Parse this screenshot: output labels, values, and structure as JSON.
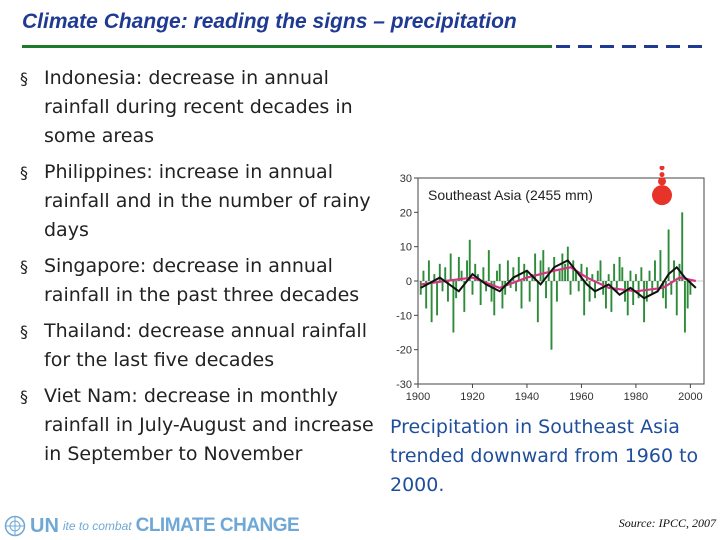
{
  "slide": {
    "title": "Climate Change: reading the signs – precipitation",
    "bullets": [
      "Indonesia: decrease in annual rainfall during recent decades in some areas",
      "Philippines: increase in annual rainfall and in the number of rainy days",
      "Singapore: decrease in annual rainfall in the past three decades",
      "Thailand: decrease annual rainfall for the last five decades",
      "Viet Nam: decrease in monthly rainfall in July-August and increase in September to November"
    ],
    "bullet_glyph": "§",
    "caption": "Precipitation in Southeast Asia trended downward from 1960 to 2000.",
    "logo": {
      "part1": "UN",
      "part2": "ite to combat",
      "part3": "CLIMATE CHANGE"
    },
    "source": "Source: IPCC, 2007"
  },
  "colors": {
    "title": "#1f3a93",
    "rule_solid": "#1b7a2b",
    "caption": "#1f4e9c",
    "bar": "#2e8b3a",
    "smooth": "#111111",
    "trend": "#d63384",
    "dot": "#e8332a"
  },
  "chart_data": {
    "type": "bar",
    "title": "Southeast Asia (2455 mm)",
    "x_ticks": [
      1900,
      1920,
      1940,
      1960,
      1980,
      2000
    ],
    "y_ticks": [
      30,
      20,
      10,
      0,
      -10,
      -20,
      -30
    ],
    "xlim": [
      1900,
      2005
    ],
    "ylim": [
      -30,
      30
    ],
    "bars": {
      "start_year": 1901,
      "values": [
        -4,
        3,
        -8,
        6,
        -12,
        2,
        -10,
        5,
        -3,
        4,
        -6,
        8,
        -15,
        -5,
        7,
        3,
        -9,
        6,
        12,
        -4,
        5,
        2,
        -7,
        4,
        -3,
        9,
        -6,
        -10,
        3,
        5,
        -8,
        -4,
        6,
        -2,
        4,
        -3,
        7,
        -8,
        5,
        3,
        -6,
        2,
        8,
        -12,
        6,
        9,
        -5,
        4,
        -20,
        7,
        -6,
        3,
        8,
        5,
        10,
        -4,
        6,
        3,
        -3,
        5,
        -10,
        4,
        -6,
        2,
        -5,
        3,
        6,
        -4,
        -8,
        2,
        -9,
        5,
        -3,
        7,
        4,
        -6,
        -10,
        3,
        -7,
        2,
        -5,
        4,
        -12,
        -6,
        3,
        -4,
        6,
        -3,
        9,
        -5,
        -8,
        15,
        -4,
        6,
        -10,
        5,
        20,
        -15,
        -8,
        -4
      ]
    },
    "smooth_line": [
      [
        1901,
        -2
      ],
      [
        1908,
        1
      ],
      [
        1915,
        -3
      ],
      [
        1920,
        2
      ],
      [
        1925,
        -1
      ],
      [
        1930,
        -3
      ],
      [
        1935,
        1
      ],
      [
        1940,
        3
      ],
      [
        1945,
        -1
      ],
      [
        1950,
        4
      ],
      [
        1955,
        6
      ],
      [
        1958,
        3
      ],
      [
        1962,
        -1
      ],
      [
        1965,
        -3
      ],
      [
        1970,
        -1
      ],
      [
        1974,
        -4
      ],
      [
        1978,
        -2
      ],
      [
        1983,
        -5
      ],
      [
        1988,
        -3
      ],
      [
        1992,
        2
      ],
      [
        1995,
        4
      ],
      [
        1998,
        1
      ],
      [
        2002,
        -2
      ]
    ],
    "trend_line": [
      [
        1901,
        -1
      ],
      [
        1910,
        0
      ],
      [
        1920,
        1
      ],
      [
        1930,
        -2
      ],
      [
        1940,
        1
      ],
      [
        1950,
        3
      ],
      [
        1956,
        4
      ],
      [
        1962,
        1
      ],
      [
        1970,
        -2
      ],
      [
        1980,
        -3
      ],
      [
        1990,
        -2
      ],
      [
        1996,
        1
      ],
      [
        2002,
        0
      ]
    ],
    "significance_dots": [
      {
        "y": 33,
        "size": "small"
      },
      {
        "y": 31,
        "size": "small"
      },
      {
        "y": 29,
        "size": "medium"
      },
      {
        "y": 25,
        "size": "large"
      }
    ],
    "grid": false
  }
}
